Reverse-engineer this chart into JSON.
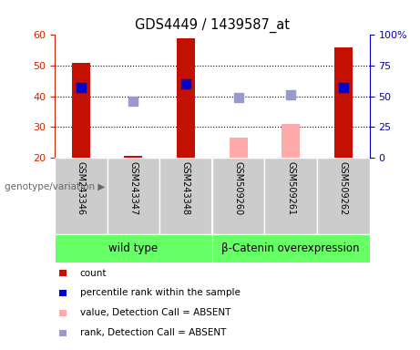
{
  "title": "GDS4449 / 1439587_at",
  "samples": [
    "GSM243346",
    "GSM243347",
    "GSM243348",
    "GSM509260",
    "GSM509261",
    "GSM509262"
  ],
  "count_values": [
    51.0,
    20.5,
    59.0,
    null,
    null,
    56.0
  ],
  "count_absent_values": [
    null,
    null,
    null,
    26.5,
    31.0,
    null
  ],
  "rank_values": [
    43.0,
    null,
    44.0,
    null,
    null,
    43.0
  ],
  "rank_absent_values": [
    null,
    38.5,
    null,
    39.5,
    40.5,
    null
  ],
  "ylim_left": [
    20,
    60
  ],
  "ylim_right": [
    0,
    100
  ],
  "yticks_left": [
    20,
    30,
    40,
    50,
    60
  ],
  "yticks_right": [
    0,
    25,
    50,
    75,
    100
  ],
  "ytick_labels_right": [
    "0",
    "25",
    "50",
    "75",
    "100%"
  ],
  "bar_color_red": "#C41000",
  "bar_color_pink": "#FFAAAA",
  "square_color_blue": "#0000CC",
  "square_color_light": "#9999CC",
  "group1_label": "wild type",
  "group2_label": "β-Catenin overexpression",
  "group_bg_color": "#66FF66",
  "sample_bg_color": "#CCCCCC",
  "plot_bg_color": "#FFFFFF",
  "genotype_label": "genotype/variation",
  "legend_items": [
    {
      "label": "count",
      "color": "#C41000"
    },
    {
      "label": "percentile rank within the sample",
      "color": "#0000CC"
    },
    {
      "label": "value, Detection Call = ABSENT",
      "color": "#FFAAAA"
    },
    {
      "label": "rank, Detection Call = ABSENT",
      "color": "#9999CC"
    }
  ],
  "bar_width": 0.35,
  "square_size": 55,
  "left_axis_color": "#CC2200",
  "right_axis_color": "#0000CC",
  "dotted_lines": [
    30,
    40,
    50
  ],
  "group1_samples": [
    0,
    1,
    2
  ],
  "group2_samples": [
    3,
    4,
    5
  ]
}
